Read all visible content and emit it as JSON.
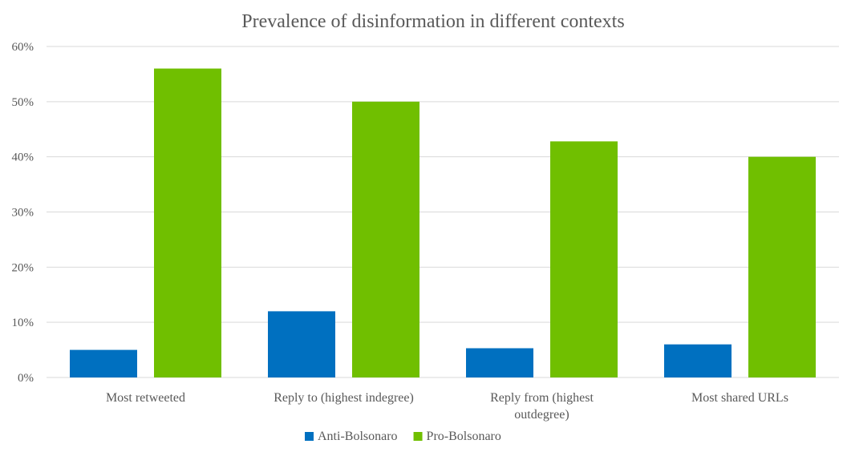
{
  "chart_data": {
    "type": "bar",
    "title": "Prevalence of disinformation in different contexts",
    "categories": [
      [
        "Most retweeted"
      ],
      [
        "Reply to (highest indegree)"
      ],
      [
        "Reply from (highest",
        "outdegree)"
      ],
      [
        "Most shared URLs"
      ]
    ],
    "series": [
      {
        "name": "Anti-Bolsonaro",
        "color": "#0070c0",
        "values": [
          5,
          12,
          5.3,
          6
        ]
      },
      {
        "name": "Pro-Bolsonaro",
        "color": "#70bf00",
        "values": [
          56,
          50,
          42.8,
          40
        ]
      }
    ],
    "ylim": [
      0,
      60
    ],
    "yticks": [
      0,
      10,
      20,
      30,
      40,
      50,
      60
    ],
    "ytick_labels": [
      "0%",
      "10%",
      "20%",
      "30%",
      "40%",
      "50%",
      "60%"
    ],
    "grid": true,
    "legend_position": "bottom"
  }
}
